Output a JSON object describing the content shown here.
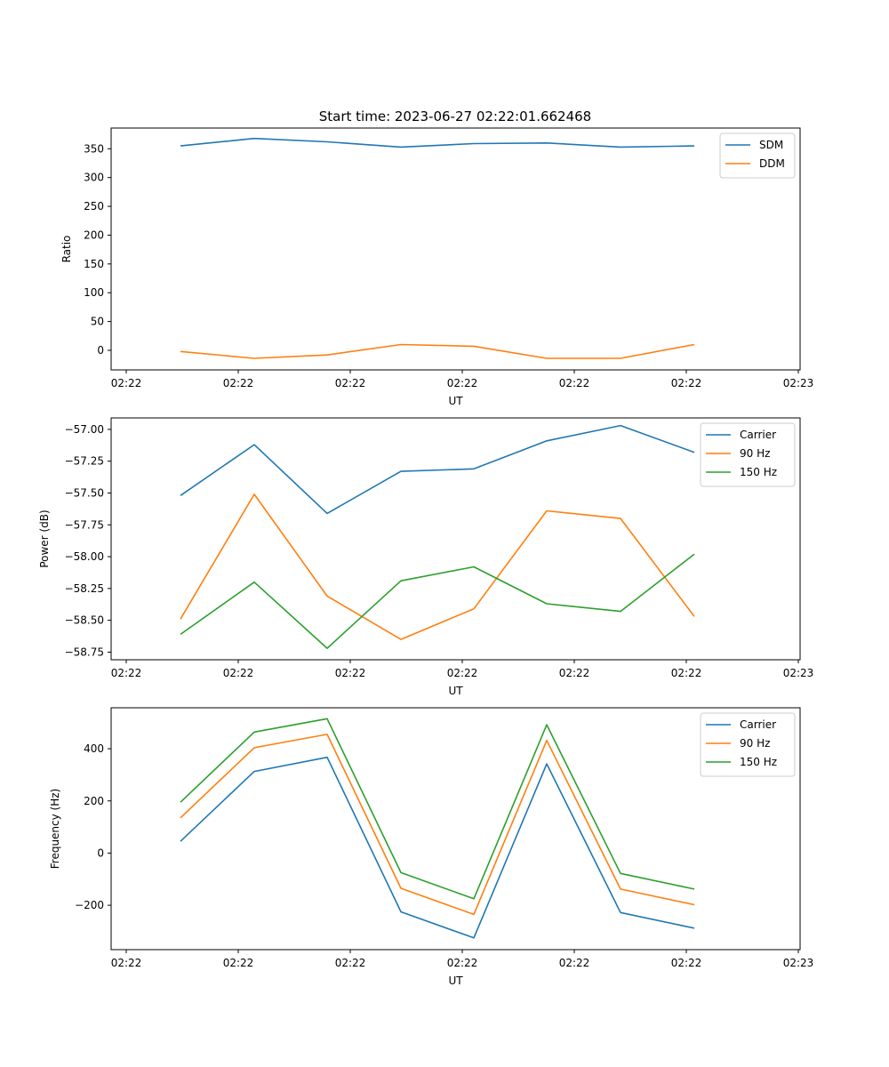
{
  "figure_title": "Start time: 2023-06-27 02:22:01.662468",
  "chart_data": [
    {
      "type": "line",
      "title": "Start time: 2023-06-27 02:22:01.662468",
      "xlabel": "UT",
      "ylabel": "Ratio",
      "x_tick_labels": [
        "02:22",
        "02:22",
        "02:22",
        "02:22",
        "02:22",
        "02:22",
        "02:23"
      ],
      "ylim": [
        -34,
        386
      ],
      "y_ticks": [
        0,
        50,
        100,
        150,
        200,
        250,
        300,
        350
      ],
      "legend_position": "top-right",
      "series": [
        {
          "name": "SDM",
          "color": "#1f77b4",
          "values": [
            355,
            368,
            362,
            353,
            359,
            360,
            353,
            355
          ]
        },
        {
          "name": "DDM",
          "color": "#ff7f0e",
          "values": [
            -2,
            -14,
            -8,
            10,
            7,
            -14,
            -14,
            10
          ]
        }
      ]
    },
    {
      "type": "line",
      "title": "",
      "xlabel": "UT",
      "ylabel": "Power (dB)",
      "x_tick_labels": [
        "02:22",
        "02:22",
        "02:22",
        "02:22",
        "02:22",
        "02:22",
        "02:23"
      ],
      "ylim": [
        -58.81,
        -56.91
      ],
      "y_ticks": [
        -58.75,
        -58.5,
        -58.25,
        -58.0,
        -57.75,
        -57.5,
        -57.25,
        -57.0
      ],
      "y_tick_labels": [
        "−58.75",
        "−58.50",
        "−58.25",
        "−58.00",
        "−57.75",
        "−57.50",
        "−57.25",
        "−57.00"
      ],
      "legend_position": "top-right",
      "series": [
        {
          "name": "Carrier",
          "color": "#1f77b4",
          "values": [
            -57.52,
            -57.12,
            -57.66,
            -57.33,
            -57.31,
            -57.09,
            -56.97,
            -57.18
          ]
        },
        {
          "name": "90 Hz",
          "color": "#ff7f0e",
          "values": [
            -58.49,
            -57.51,
            -58.31,
            -58.65,
            -58.41,
            -57.64,
            -57.7,
            -58.47
          ]
        },
        {
          "name": "150 Hz",
          "color": "#2ca02c",
          "values": [
            -58.61,
            -58.2,
            -58.72,
            -58.19,
            -58.08,
            -58.37,
            -58.43,
            -57.98
          ]
        }
      ]
    },
    {
      "type": "line",
      "title": "",
      "xlabel": "UT",
      "ylabel": "Frequency (Hz)",
      "x_tick_labels": [
        "02:22",
        "02:22",
        "02:22",
        "02:22",
        "02:22",
        "02:22",
        "02:23"
      ],
      "ylim": [
        -370,
        557
      ],
      "y_ticks": [
        -200,
        0,
        200,
        400
      ],
      "y_tick_labels": [
        "−200",
        "0",
        "200",
        "400"
      ],
      "legend_position": "top-right",
      "series": [
        {
          "name": "Carrier",
          "color": "#1f77b4",
          "values": [
            45,
            313,
            367,
            -225,
            -325,
            342,
            -228,
            -288
          ]
        },
        {
          "name": "90 Hz",
          "color": "#ff7f0e",
          "values": [
            135,
            404,
            455,
            -135,
            -235,
            432,
            -138,
            -198
          ]
        },
        {
          "name": "150 Hz",
          "color": "#2ca02c",
          "values": [
            195,
            464,
            515,
            -75,
            -175,
            492,
            -78,
            -138
          ]
        }
      ]
    }
  ]
}
